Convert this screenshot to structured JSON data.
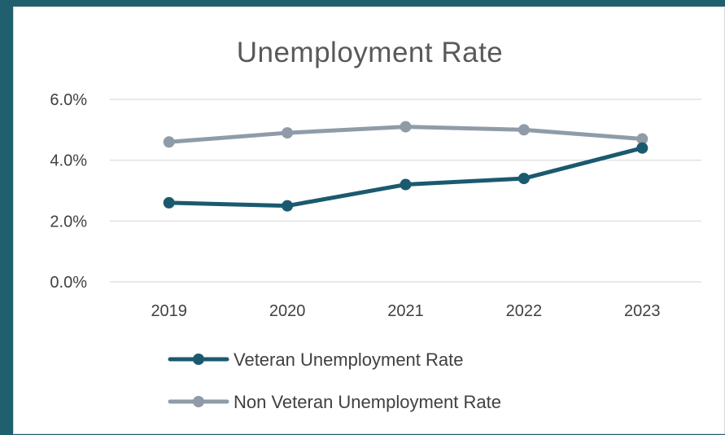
{
  "chart_data": {
    "type": "line",
    "title": "Unemployment Rate",
    "categories": [
      "2019",
      "2020",
      "2021",
      "2022",
      "2023"
    ],
    "ylim": [
      0,
      6
    ],
    "yticks": [
      {
        "value": 0,
        "label": "0.0%"
      },
      {
        "value": 2,
        "label": "2.0%"
      },
      {
        "value": 4,
        "label": "4.0%"
      },
      {
        "value": 6,
        "label": "6.0%"
      }
    ],
    "grid": true,
    "legend_position": "bottom",
    "series": [
      {
        "name": "Veteran Unemployment Rate",
        "values": [
          2.6,
          2.5,
          3.2,
          3.4,
          4.4
        ],
        "color": "#1b5a6e"
      },
      {
        "name": "Non Veteran Unemployment Rate",
        "values": [
          4.6,
          4.9,
          5.1,
          5.0,
          4.7
        ],
        "color": "#8f9ca8"
      }
    ]
  },
  "colors": {
    "background": "#1f5f6e",
    "card": "#ffffff",
    "gridline": "#d9d9d9",
    "text": "#404040"
  }
}
